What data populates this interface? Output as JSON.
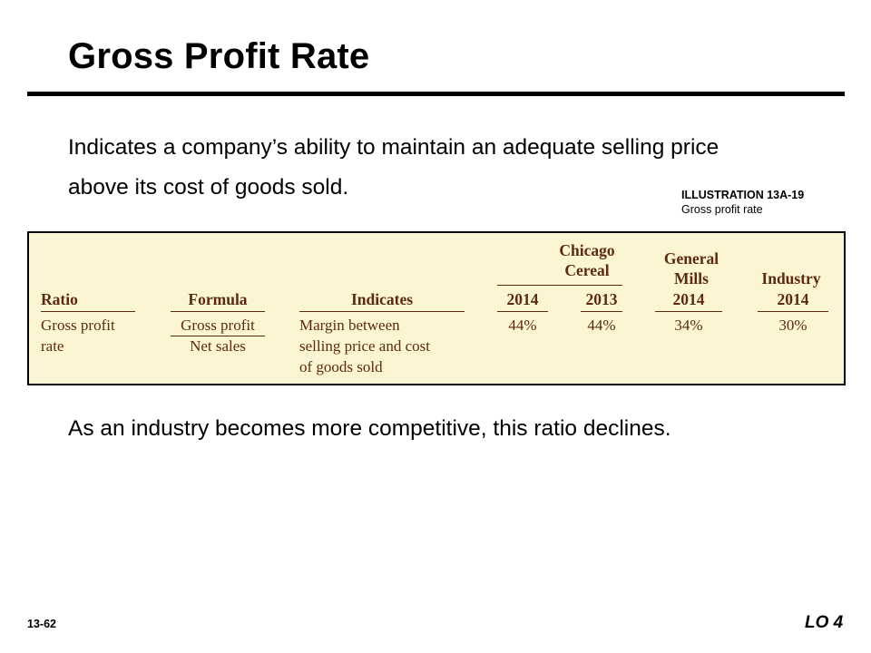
{
  "slide": {
    "title": "Gross Profit Rate",
    "intro": "Indicates a company’s ability to maintain an adequate selling price above its cost of goods sold.",
    "conclusion": "As an industry becomes more competitive, this ratio declines.",
    "slide_number": "13-62",
    "learning_objective": "LO 4"
  },
  "illustration": {
    "label": "ILLUSTRATION 13A-19",
    "caption": "Gross profit rate"
  },
  "table": {
    "group_chicago": [
      "Chicago",
      "Cereal"
    ],
    "group_general": [
      "General",
      "Mills"
    ],
    "headers": {
      "ratio": "Ratio",
      "formula": "Formula",
      "indicates": "Indicates",
      "chicago_2014": "2014",
      "chicago_2013": "2013",
      "general_2014": "2014",
      "industry": "Industry",
      "industry_2014": "2014"
    },
    "row": {
      "ratio": [
        "Gross profit",
        "rate"
      ],
      "formula_numerator": "Gross profit",
      "formula_denominator": "Net sales",
      "indicates": [
        "Margin between",
        "selling price and cost",
        "of goods sold"
      ],
      "chicago_2014": "44%",
      "chicago_2013": "44%",
      "general_2014": "34%",
      "industry_2014": "30%"
    }
  }
}
